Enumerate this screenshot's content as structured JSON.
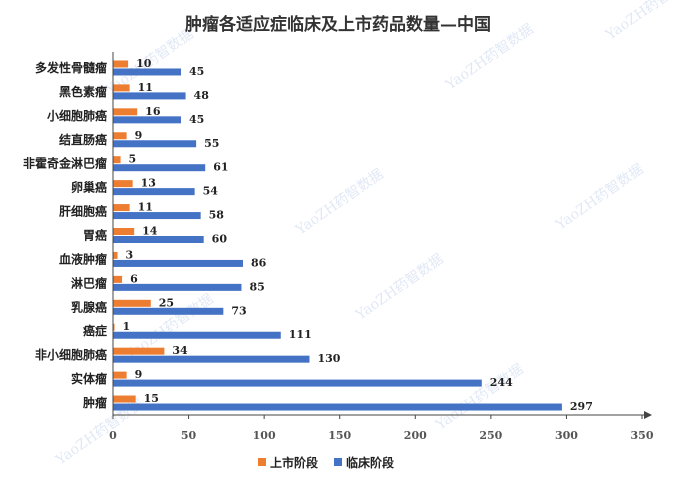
{
  "chart_data": {
    "type": "bar",
    "orientation": "horizontal",
    "title": "肿瘤各适应症临床及上市药品数量—中国",
    "categories": [
      "多发性骨髓瘤",
      "黑色素瘤",
      "小细胞肺癌",
      "结直肠癌",
      "非霍奇金淋巴瘤",
      "卵巢癌",
      "肝细胞癌",
      "胃癌",
      "血液肿瘤",
      "淋巴瘤",
      "乳腺癌",
      "癌症",
      "非小细胞肺癌",
      "实体瘤",
      "肿瘤"
    ],
    "series": [
      {
        "name": "上市阶段",
        "color": "#ED7D31",
        "values": [
          10,
          11,
          16,
          9,
          5,
          13,
          11,
          14,
          3,
          6,
          25,
          1,
          34,
          9,
          15
        ]
      },
      {
        "name": "临床阶段",
        "color": "#4472C4",
        "values": [
          45,
          48,
          45,
          55,
          61,
          54,
          58,
          60,
          86,
          85,
          73,
          111,
          130,
          244,
          297
        ]
      }
    ],
    "xlim": [
      0,
      350
    ],
    "xticks": [
      "0",
      "50",
      "100",
      "150",
      "200",
      "250",
      "300",
      "350"
    ],
    "xlabel": "",
    "ylabel": "",
    "grid": false,
    "legend_position": "bottom"
  },
  "watermark": "YaoZH药智数据"
}
